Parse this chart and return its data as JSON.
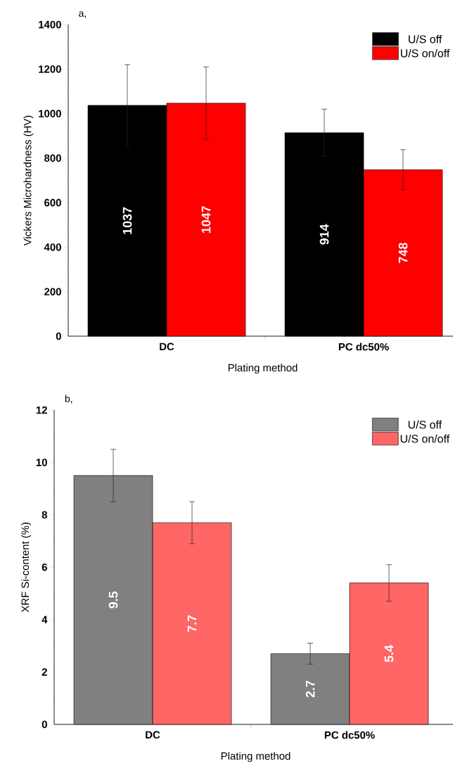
{
  "chart_data": [
    {
      "type": "bar",
      "title": "a,",
      "xlabel": "Plating method",
      "ylabel": "Vickers Microhardness (HV)",
      "categories": [
        "DC",
        "PC dc50%"
      ],
      "ylim": [
        0,
        1400
      ],
      "yticks": [
        0,
        200,
        400,
        600,
        800,
        1000,
        1200,
        1400
      ],
      "legend": "top right",
      "series": [
        {
          "name": "U/S off",
          "color": "#000000",
          "values": [
            1037,
            914
          ],
          "errors": [
            183,
            106
          ],
          "value_labels": [
            "1037",
            "914"
          ]
        },
        {
          "name": "U/S on/off",
          "color": "#ff0000",
          "values": [
            1047,
            748
          ],
          "errors": [
            163,
            90
          ],
          "value_labels": [
            "1047",
            "748"
          ]
        }
      ]
    },
    {
      "type": "bar",
      "title": "b,",
      "xlabel": "Plating method",
      "ylabel": "XRF Si-content (%)",
      "categories": [
        "DC",
        "PC dc50%"
      ],
      "ylim": [
        0,
        12
      ],
      "yticks": [
        0,
        2,
        4,
        6,
        8,
        10,
        12
      ],
      "legend": "top right",
      "series": [
        {
          "name": "U/S off",
          "color": "#808080",
          "values": [
            9.5,
            2.7
          ],
          "errors": [
            1.0,
            0.4
          ],
          "value_labels": [
            "9.5",
            "2.7"
          ]
        },
        {
          "name": "U/S on/off",
          "color": "#ff6666",
          "values": [
            7.7,
            5.4
          ],
          "errors": [
            0.8,
            0.7
          ],
          "value_labels": [
            "7.7",
            "5.4"
          ]
        }
      ]
    }
  ]
}
